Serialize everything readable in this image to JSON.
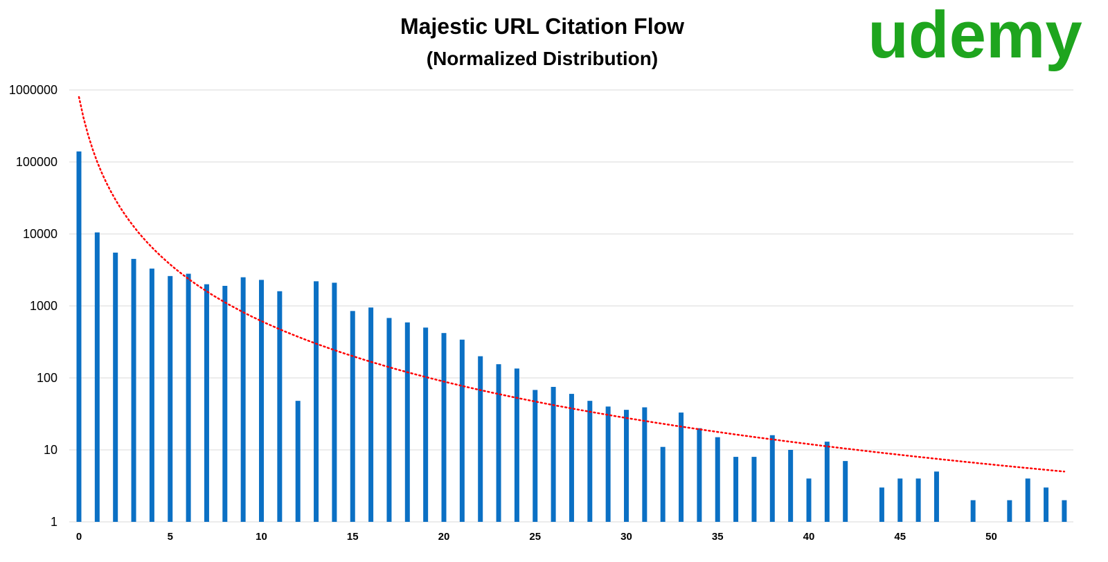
{
  "logo": {
    "text": "udemy",
    "color": "#1ea51e"
  },
  "colors": {
    "bar": "#0b70c4",
    "trend": "#ff0000",
    "grid": "#d9d9d9"
  },
  "chart_data": {
    "type": "bar",
    "title": "Majestic URL Citation Flow",
    "subtitle": "(Normalized Distribution)",
    "xlabel": "",
    "ylabel": "",
    "y_scale": "log",
    "ylim": [
      1,
      1000000
    ],
    "y_ticks": [
      1,
      10,
      100,
      1000,
      10000,
      100000,
      1000000
    ],
    "y_tick_labels": [
      "1",
      "10",
      "100",
      "1000",
      "10000",
      "100000",
      "1000000"
    ],
    "x_ticks": [
      0,
      5,
      10,
      15,
      20,
      25,
      30,
      35,
      40,
      45,
      50
    ],
    "x_tick_labels": [
      "0",
      "5",
      "10",
      "15",
      "20",
      "25",
      "30",
      "35",
      "40",
      "45",
      "50"
    ],
    "grid": true,
    "x": [
      0,
      1,
      2,
      3,
      4,
      5,
      6,
      7,
      8,
      9,
      10,
      11,
      12,
      13,
      14,
      15,
      16,
      17,
      18,
      19,
      20,
      21,
      22,
      23,
      24,
      25,
      26,
      27,
      28,
      29,
      30,
      31,
      32,
      33,
      34,
      35,
      36,
      37,
      38,
      39,
      40,
      41,
      42,
      43,
      44,
      45,
      46,
      47,
      48,
      49,
      50,
      51,
      52,
      53,
      54
    ],
    "values": [
      140000,
      10500,
      5500,
      4500,
      3300,
      2600,
      2800,
      2000,
      1900,
      2500,
      2300,
      1600,
      48,
      2200,
      2100,
      850,
      950,
      680,
      590,
      500,
      420,
      340,
      200,
      155,
      135,
      68,
      75,
      60,
      48,
      40,
      36,
      39,
      11,
      33,
      20,
      15,
      8,
      8,
      16,
      10,
      4,
      13,
      7,
      null,
      3,
      4,
      4,
      5,
      null,
      2,
      null,
      2,
      4,
      3,
      2
    ],
    "trendline": {
      "type": "power",
      "style": "dotted",
      "y_at_x0": 800000,
      "y_at_x54": 5
    }
  }
}
